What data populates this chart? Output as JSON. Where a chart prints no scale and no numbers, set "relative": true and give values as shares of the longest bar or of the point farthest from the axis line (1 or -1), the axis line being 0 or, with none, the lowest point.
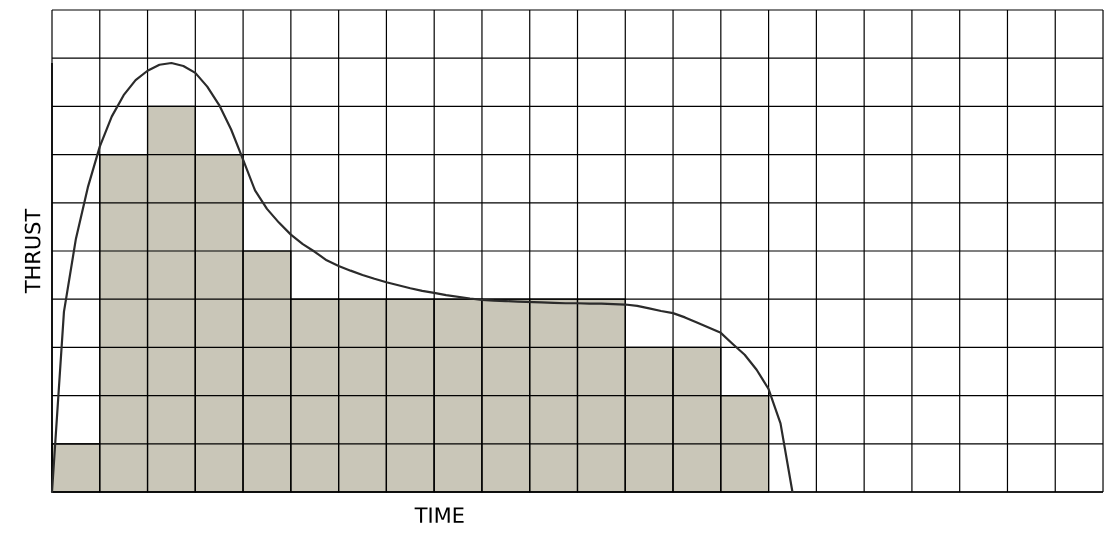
{
  "chart_data": [
    {
      "type": "bar",
      "relative": true,
      "color": "#c9c6b8",
      "categories": [
        null,
        null,
        null,
        null,
        null,
        null,
        null,
        null,
        null,
        null,
        null,
        null,
        null,
        null,
        null
      ],
      "values": [
        0.125,
        0.875,
        1,
        0.875,
        0.625,
        0.5,
        0.5,
        0.5,
        0.5,
        0.5,
        0.5,
        0.5,
        0.375,
        0.375,
        0.25
      ]
    },
    {
      "type": "line",
      "relative": true,
      "color": "#2b2b2b",
      "xlabel": "TIME",
      "ylabel": "THRUST",
      "grid": true,
      "categories": [
        null,
        null,
        null,
        null,
        null,
        null,
        null,
        null,
        null,
        null,
        null,
        null,
        null,
        null,
        null,
        null,
        null,
        null,
        null,
        null,
        null,
        null,
        null,
        null,
        null,
        null,
        null,
        null,
        null,
        null,
        null,
        null,
        null,
        null,
        null,
        null,
        null,
        null,
        null,
        null,
        null,
        null,
        null,
        null,
        null,
        null,
        null,
        null,
        null,
        null,
        null,
        null,
        null,
        null,
        null,
        null,
        null,
        null,
        null,
        null,
        null,
        null,
        null,
        null,
        null,
        null,
        null,
        null,
        null,
        null,
        null,
        null,
        null,
        null,
        null,
        null,
        null,
        null,
        null,
        null,
        null,
        null,
        null,
        null,
        null,
        null,
        null,
        null,
        null
      ],
      "values": [
        0,
        0.42,
        0.59,
        0.71,
        0.805,
        0.875,
        0.925,
        0.96,
        0.982,
        0.996,
        1,
        0.993,
        0.977,
        0.945,
        0.902,
        0.845,
        0.775,
        0.703,
        0.66,
        0.628,
        0.6,
        0.578,
        0.56,
        0.54,
        0.527,
        0.516,
        0.506,
        0.497,
        0.489,
        0.482,
        0.475,
        0.469,
        0.464,
        0.459,
        0.455,
        0.451,
        0.448,
        0.446,
        0.445,
        0.444,
        0.443,
        0.442,
        0.441,
        0.44,
        0.44,
        0.439,
        0.439,
        0.438,
        0.437,
        0.434,
        0.428,
        0.422,
        0.417,
        0.407,
        0.395,
        0.383,
        0.371,
        0.345,
        0.32,
        0.285,
        0.24,
        0.16,
        0,
        null,
        null,
        null,
        null,
        null,
        null,
        null,
        null,
        null,
        null,
        null,
        null,
        null,
        null,
        null,
        null,
        null,
        null,
        null,
        null,
        null,
        null,
        null,
        null,
        null,
        null
      ]
    }
  ]
}
